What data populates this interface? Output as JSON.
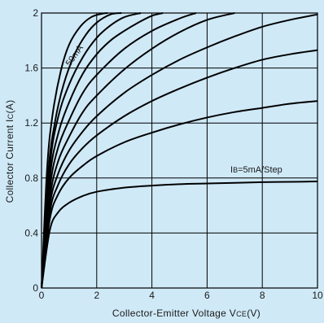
{
  "chart_data": {
    "type": "line",
    "xlabel": {
      "main": "Collector-Emitter Voltage V",
      "sub": "CE",
      "unit": "(V)"
    },
    "ylabel": {
      "main": "Collector Current I",
      "sub": "C",
      "unit": "(A)"
    },
    "xlim": [
      0,
      10
    ],
    "ylim": [
      0,
      2
    ],
    "x_ticks": [
      "0",
      "2",
      "4",
      "6",
      "8",
      "10"
    ],
    "y_ticks": [
      "0",
      "0.4",
      "0.8",
      "1.2",
      "1.6",
      "2"
    ],
    "grid": true,
    "annotations": {
      "top_curve": "50mA",
      "step": {
        "prefix": "I",
        "sub": "B",
        "rest": "=5mA/Step"
      }
    },
    "series": [
      {
        "x": [
          0,
          0.3,
          0.6,
          1,
          1.5,
          2,
          3,
          4,
          5,
          6,
          7,
          8,
          9,
          10
        ],
        "y": [
          0,
          0.42,
          0.55,
          0.62,
          0.67,
          0.7,
          0.73,
          0.745,
          0.755,
          0.76,
          0.765,
          0.77,
          0.772,
          0.775
        ]
      },
      {
        "x": [
          0,
          0.3,
          0.6,
          1,
          1.5,
          2,
          3,
          4,
          5,
          6,
          7,
          8,
          9,
          10
        ],
        "y": [
          0,
          0.5,
          0.68,
          0.8,
          0.89,
          0.96,
          1.06,
          1.13,
          1.19,
          1.24,
          1.28,
          1.31,
          1.34,
          1.36
        ]
      },
      {
        "x": [
          0,
          0.3,
          0.6,
          1,
          1.5,
          2,
          3,
          4,
          5,
          6,
          7,
          8,
          9,
          10
        ],
        "y": [
          0,
          0.55,
          0.75,
          0.9,
          1.02,
          1.11,
          1.25,
          1.36,
          1.45,
          1.53,
          1.6,
          1.66,
          1.7,
          1.73
        ]
      },
      {
        "x": [
          0,
          0.3,
          0.6,
          1,
          1.5,
          2,
          3,
          4,
          5,
          6,
          7,
          8,
          9,
          10
        ],
        "y": [
          0,
          0.6,
          0.83,
          1.0,
          1.14,
          1.25,
          1.42,
          1.55,
          1.66,
          1.75,
          1.83,
          1.9,
          1.95,
          1.99
        ]
      },
      {
        "x": [
          0,
          0.3,
          0.6,
          1,
          1.5,
          2,
          3,
          4,
          5,
          6,
          7
        ],
        "y": [
          0,
          0.65,
          0.92,
          1.1,
          1.28,
          1.4,
          1.59,
          1.74,
          1.86,
          1.95,
          2.0
        ]
      },
      {
        "x": [
          0,
          0.3,
          0.6,
          1,
          1.5,
          2,
          3,
          4,
          5,
          5.6
        ],
        "y": [
          0,
          0.72,
          1.02,
          1.22,
          1.42,
          1.55,
          1.74,
          1.87,
          1.96,
          2.0
        ]
      },
      {
        "x": [
          0,
          0.3,
          0.6,
          1,
          1.5,
          2,
          2.5,
          3,
          3.5,
          4,
          4.4
        ],
        "y": [
          0,
          0.8,
          1.12,
          1.35,
          1.56,
          1.7,
          1.8,
          1.87,
          1.93,
          1.98,
          2.0
        ]
      },
      {
        "x": [
          0,
          0.3,
          0.6,
          1,
          1.5,
          2,
          2.5,
          3,
          3.6
        ],
        "y": [
          0,
          0.88,
          1.24,
          1.48,
          1.68,
          1.82,
          1.91,
          1.97,
          2.0
        ]
      },
      {
        "x": [
          0,
          0.25,
          0.5,
          0.8,
          1.2,
          1.6,
          2,
          2.5,
          2.9
        ],
        "y": [
          0,
          0.85,
          1.22,
          1.48,
          1.7,
          1.84,
          1.93,
          1.99,
          2.0
        ]
      },
      {
        "x": [
          0,
          0.2,
          0.4,
          0.7,
          1,
          1.4,
          1.8,
          2.2,
          2.4
        ],
        "y": [
          0,
          0.86,
          1.26,
          1.58,
          1.77,
          1.9,
          1.97,
          1.995,
          2.0
        ]
      }
    ]
  }
}
